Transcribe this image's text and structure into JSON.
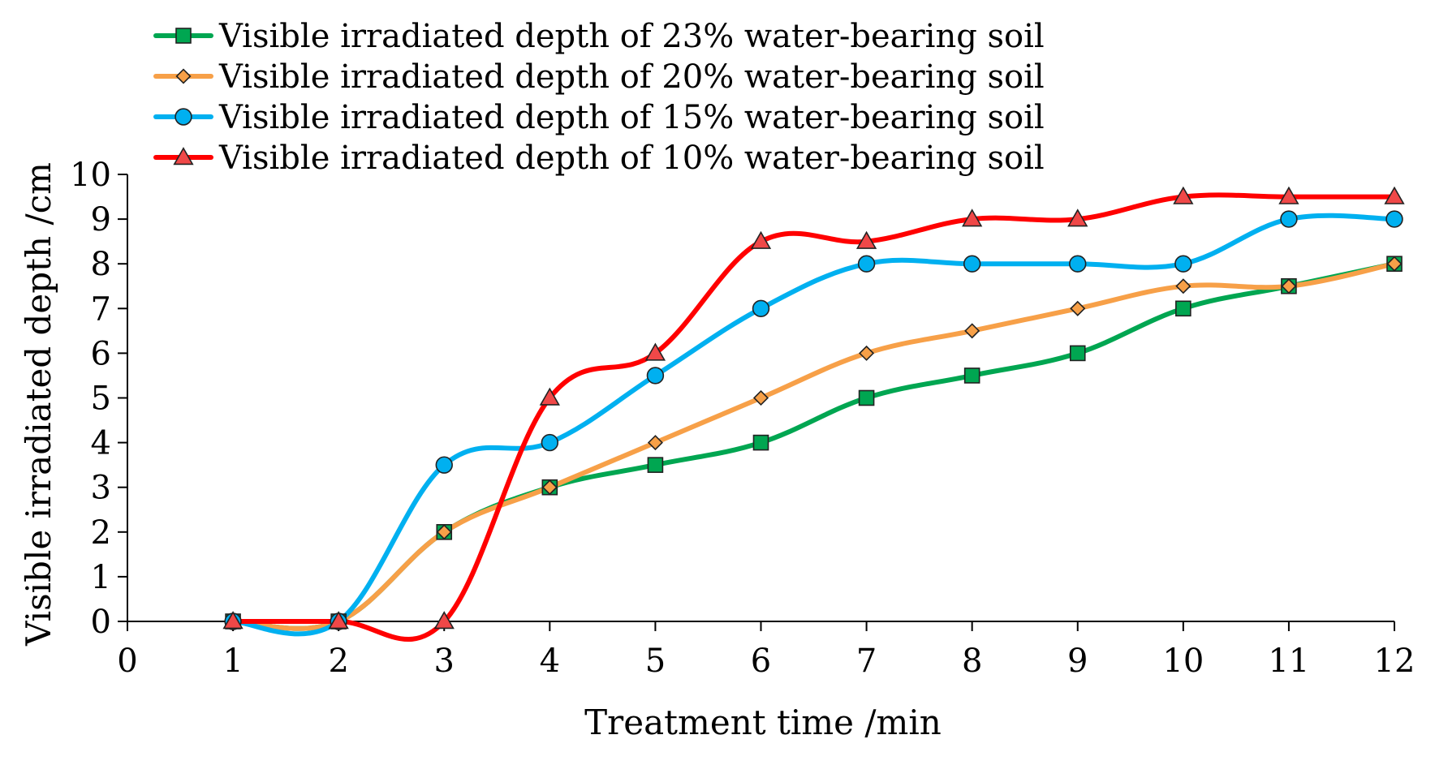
{
  "chart_data": {
    "type": "line",
    "title": "",
    "xlabel": "Treatment time /min",
    "ylabel": "Visible irradiated depth /cm",
    "xlim": [
      0,
      12
    ],
    "ylim": [
      0,
      10
    ],
    "x_ticks": [
      "0",
      "1",
      "2",
      "3",
      "4",
      "5",
      "6",
      "7",
      "8",
      "9",
      "10",
      "11",
      "12"
    ],
    "y_ticks": [
      "0",
      "1",
      "2",
      "3",
      "4",
      "5",
      "6",
      "7",
      "8",
      "9",
      "10"
    ],
    "x": [
      1,
      2,
      3,
      4,
      5,
      6,
      7,
      8,
      9,
      10,
      11,
      12
    ],
    "legend_position": "top-left",
    "series": [
      {
        "name": "Visible irradiated depth of 23% water-bearing soil",
        "marker": "square",
        "color": "#00A651",
        "marker_fill": "#00A651",
        "values": [
          0,
          0,
          2,
          3,
          3.5,
          4,
          5,
          5.5,
          6,
          7,
          7.5,
          8
        ]
      },
      {
        "name": "Visible irradiated depth of 20% water-bearing soil",
        "marker": "diamond",
        "color": "#F7A048",
        "marker_fill": "#F7A048",
        "values": [
          0,
          0,
          2,
          3,
          4,
          5,
          6,
          6.5,
          7,
          7.5,
          7.5,
          8
        ]
      },
      {
        "name": "Visible irradiated depth of 15% water-bearing soil",
        "marker": "circle",
        "color": "#00B0F0",
        "marker_fill": "#00B0F0",
        "values": [
          0,
          0,
          3.5,
          4,
          5.5,
          7,
          8,
          8,
          8,
          8,
          9,
          9
        ]
      },
      {
        "name": "Visible irradiated depth of 10% water-bearing soil",
        "marker": "triangle",
        "color": "#FF0000",
        "marker_fill": "#F04848",
        "values": [
          0,
          0,
          0,
          5,
          6,
          8.5,
          8.5,
          9,
          9,
          9.5,
          9.5,
          9.5
        ]
      }
    ]
  }
}
